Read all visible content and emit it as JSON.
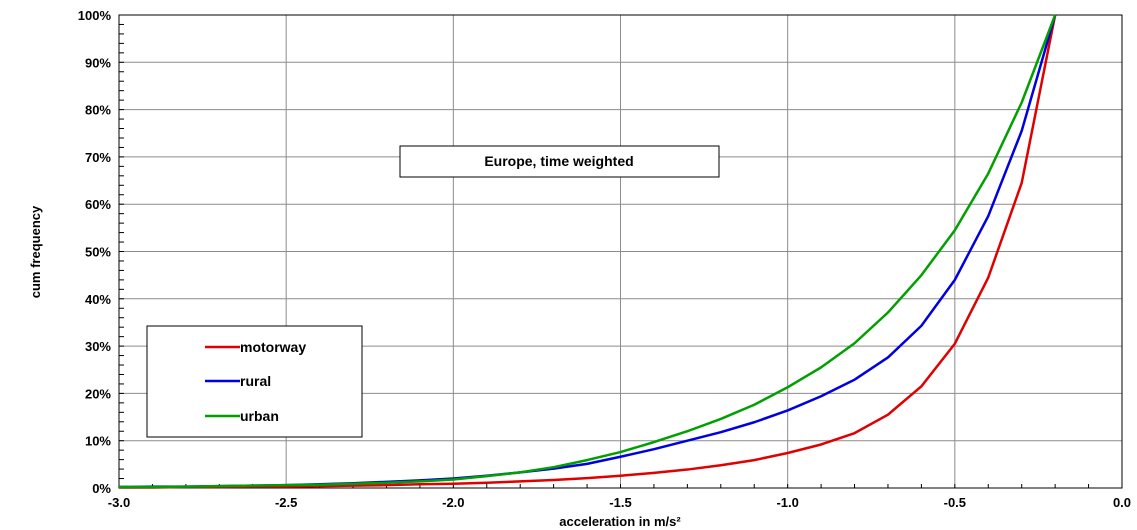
{
  "chart_data": {
    "type": "line",
    "xlabel": "acceleration in m/s²",
    "ylabel": "cum frequency",
    "annotation": "Europe, time weighted",
    "xlim": [
      -3.0,
      0.0
    ],
    "ylim": [
      0,
      100
    ],
    "x_ticks": [
      "-3.0",
      "-2.5",
      "-2.0",
      "-1.5",
      "-1.0",
      "-0.5",
      "0.0"
    ],
    "y_ticks": [
      "0%",
      "10%",
      "20%",
      "30%",
      "40%",
      "50%",
      "60%",
      "70%",
      "80%",
      "90%",
      "100%"
    ],
    "grid": true,
    "legend_position": "lower-left",
    "x": [
      -3.0,
      -2.9,
      -2.8,
      -2.7,
      -2.6,
      -2.5,
      -2.4,
      -2.3,
      -2.2,
      -2.1,
      -2.0,
      -1.9,
      -1.8,
      -1.7,
      -1.6,
      -1.5,
      -1.4,
      -1.3,
      -1.2,
      -1.1,
      -1.0,
      -0.9,
      -0.8,
      -0.7,
      -0.6,
      -0.5,
      -0.4,
      -0.3,
      -0.2
    ],
    "series": [
      {
        "name": "motorway",
        "color": "#e00000",
        "values": [
          0.1,
          0.1,
          0.2,
          0.2,
          0.3,
          0.3,
          0.4,
          0.5,
          0.6,
          0.8,
          0.9,
          1.1,
          1.4,
          1.7,
          2.1,
          2.6,
          3.2,
          3.9,
          4.8,
          5.9,
          7.4,
          9.2,
          11.6,
          15.5,
          21.5,
          30.5,
          44.5,
          64.5,
          100
        ]
      },
      {
        "name": "rural",
        "color": "#0000e0",
        "values": [
          0.2,
          0.3,
          0.3,
          0.4,
          0.5,
          0.6,
          0.8,
          1.0,
          1.3,
          1.6,
          2.0,
          2.6,
          3.3,
          4.1,
          5.1,
          6.6,
          8.2,
          10.0,
          11.8,
          13.9,
          16.4,
          19.4,
          22.9,
          27.6,
          34.3,
          44.0,
          57.5,
          75.5,
          100
        ]
      },
      {
        "name": "urban",
        "color": "#00a000",
        "values": [
          0.2,
          0.2,
          0.3,
          0.4,
          0.5,
          0.6,
          0.7,
          0.9,
          1.1,
          1.4,
          1.8,
          2.5,
          3.3,
          4.4,
          5.9,
          7.6,
          9.7,
          12.0,
          14.6,
          17.6,
          21.3,
          25.5,
          30.6,
          37.1,
          45.0,
          54.5,
          66.5,
          81.5,
          100
        ]
      }
    ]
  }
}
